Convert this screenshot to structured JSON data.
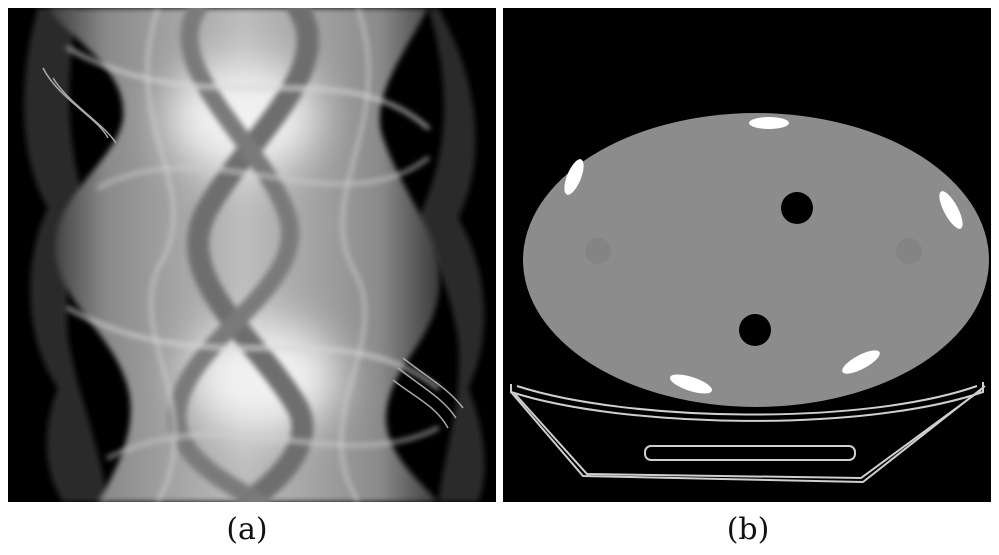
{
  "panels": [
    {
      "id": "a",
      "caption": "(a)",
      "content": "sinogram"
    },
    {
      "id": "b",
      "caption": "(b)",
      "content": "ct-slice"
    }
  ],
  "colors": {
    "background": "#ffffff",
    "panel_background": "#000000",
    "phantom_fill": "#8c8c8c",
    "insert_bright": "#ffffff",
    "insert_dark": "#000000",
    "table_line": "#cfcfcf"
  }
}
